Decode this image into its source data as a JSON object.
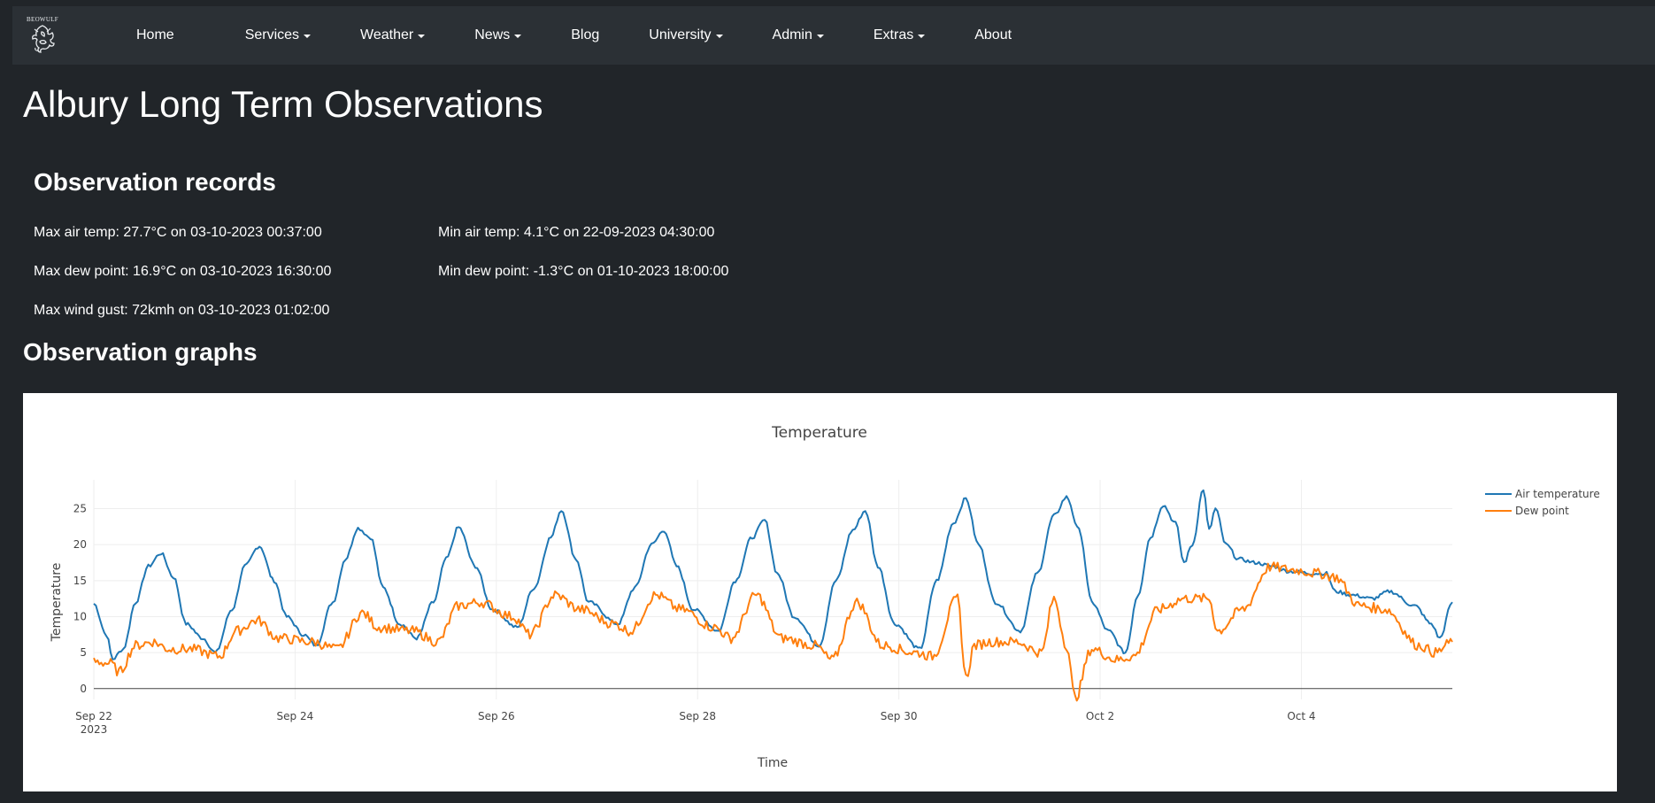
{
  "brand": {
    "name": "BEOWULF",
    "logo_icon": "dragon-icon"
  },
  "nav": {
    "items": [
      {
        "label": "Home",
        "dropdown": false
      },
      {
        "label": "Services",
        "dropdown": true
      },
      {
        "label": "Weather",
        "dropdown": true
      },
      {
        "label": "News",
        "dropdown": true
      },
      {
        "label": "Blog",
        "dropdown": false
      },
      {
        "label": "University",
        "dropdown": true
      },
      {
        "label": "Admin",
        "dropdown": true
      },
      {
        "label": "Extras",
        "dropdown": true
      },
      {
        "label": "About",
        "dropdown": false
      }
    ]
  },
  "page": {
    "title": "Albury Long Term Observations",
    "records_heading": "Observation records",
    "graphs_heading": "Observation graphs"
  },
  "records": {
    "max_air_temp": "Max air temp: 27.7°C on 03-10-2023 00:37:00",
    "min_air_temp": "Min air temp: 4.1°C on 22-09-2023 04:30:00",
    "max_dew_point": "Max dew point: 16.9°C on 03-10-2023 16:30:00",
    "min_dew_point": "Min dew point: -1.3°C on 01-10-2023 18:00:00",
    "max_wind_gust": "Max wind gust: 72kmh on 03-10-2023 01:02:00"
  },
  "chart_data": {
    "type": "line",
    "title": "Temperature",
    "xlabel": "Time",
    "ylabel": "Temperature",
    "x_range": [
      "2023-09-22",
      "2023-10-05 12:00"
    ],
    "ylim": [
      -1.5,
      29
    ],
    "y_ticks": [
      0,
      5,
      10,
      15,
      20,
      25
    ],
    "x_ticks": [
      {
        "date": "2023-09-22",
        "label": "Sep 22",
        "sublabel": "2023"
      },
      {
        "date": "2023-09-24",
        "label": "Sep 24"
      },
      {
        "date": "2023-09-26",
        "label": "Sep 26"
      },
      {
        "date": "2023-09-28",
        "label": "Sep 28"
      },
      {
        "date": "2023-09-30",
        "label": "Sep 30"
      },
      {
        "date": "2023-10-02",
        "label": "Oct 2"
      },
      {
        "date": "2023-10-04",
        "label": "Oct 4"
      }
    ],
    "grid": true,
    "legend_position": "top-right",
    "series": [
      {
        "name": "Air temperature",
        "color": "#1f77b4",
        "points": [
          [
            "2023-09-22 00:00",
            11.8
          ],
          [
            "2023-09-22 03:00",
            7.5
          ],
          [
            "2023-09-22 04:30",
            4.1
          ],
          [
            "2023-09-22 07:00",
            5.5
          ],
          [
            "2023-09-22 10:00",
            12.0
          ],
          [
            "2023-09-22 13:00",
            17.0
          ],
          [
            "2023-09-22 16:00",
            18.8
          ],
          [
            "2023-09-22 19:00",
            15.5
          ],
          [
            "2023-09-22 22:00",
            9.0
          ],
          [
            "2023-09-23 02:00",
            7.0
          ],
          [
            "2023-09-23 05:00",
            5.0
          ],
          [
            "2023-09-23 09:00",
            11.0
          ],
          [
            "2023-09-23 12:00",
            17.0
          ],
          [
            "2023-09-23 15:30",
            19.8
          ],
          [
            "2023-09-23 19:00",
            15.0
          ],
          [
            "2023-09-23 22:00",
            10.0
          ],
          [
            "2023-09-24 02:00",
            7.5
          ],
          [
            "2023-09-24 05:00",
            6.0
          ],
          [
            "2023-09-24 09:00",
            12.0
          ],
          [
            "2023-09-24 12:00",
            18.0
          ],
          [
            "2023-09-24 15:00",
            22.3
          ],
          [
            "2023-09-24 18:00",
            21.0
          ],
          [
            "2023-09-24 21:00",
            14.0
          ],
          [
            "2023-09-25 01:00",
            9.0
          ],
          [
            "2023-09-25 05:00",
            7.0
          ],
          [
            "2023-09-25 09:00",
            12.0
          ],
          [
            "2023-09-25 12:00",
            18.0
          ],
          [
            "2023-09-25 15:00",
            22.4
          ],
          [
            "2023-09-25 19:00",
            17.0
          ],
          [
            "2023-09-25 23:00",
            11.0
          ],
          [
            "2023-09-26 05:00",
            8.5
          ],
          [
            "2023-09-26 09:00",
            14.0
          ],
          [
            "2023-09-26 13:00",
            21.0
          ],
          [
            "2023-09-26 15:30",
            24.8
          ],
          [
            "2023-09-26 19:00",
            18.0
          ],
          [
            "2023-09-26 22:00",
            12.0
          ],
          [
            "2023-09-27 05:00",
            9.0
          ],
          [
            "2023-09-27 09:00",
            14.0
          ],
          [
            "2023-09-27 13:00",
            20.0
          ],
          [
            "2023-09-27 16:00",
            22.0
          ],
          [
            "2023-09-27 19:00",
            17.0
          ],
          [
            "2023-09-27 23:00",
            11.0
          ],
          [
            "2023-09-28 05:00",
            8.0
          ],
          [
            "2023-09-28 09:00",
            15.0
          ],
          [
            "2023-09-28 13:00",
            21.0
          ],
          [
            "2023-09-28 16:00",
            23.4
          ],
          [
            "2023-09-28 19:00",
            16.0
          ],
          [
            "2023-09-28 23:00",
            10.0
          ],
          [
            "2023-09-29 05:00",
            6.0
          ],
          [
            "2023-09-29 09:00",
            15.0
          ],
          [
            "2023-09-29 13:00",
            22.0
          ],
          [
            "2023-09-29 16:00",
            24.7
          ],
          [
            "2023-09-29 19:00",
            17.0
          ],
          [
            "2023-09-29 23:00",
            9.0
          ],
          [
            "2023-09-30 05:00",
            5.5
          ],
          [
            "2023-09-30 09:00",
            15.0
          ],
          [
            "2023-09-30 13:00",
            23.0
          ],
          [
            "2023-09-30 16:00",
            26.4
          ],
          [
            "2023-09-30 19:00",
            20.0
          ],
          [
            "2023-09-30 23:00",
            12.0
          ],
          [
            "2023-10-01 05:00",
            8.0
          ],
          [
            "2023-10-01 09:00",
            16.0
          ],
          [
            "2023-10-01 13:00",
            24.0
          ],
          [
            "2023-10-01 16:00",
            26.6
          ],
          [
            "2023-10-01 19:00",
            22.0
          ],
          [
            "2023-10-01 22:00",
            12.0
          ],
          [
            "2023-10-02 02:00",
            8.0
          ],
          [
            "2023-10-02 06:00",
            5.0
          ],
          [
            "2023-10-02 09:00",
            13.0
          ],
          [
            "2023-10-02 12:00",
            21.0
          ],
          [
            "2023-10-02 15:00",
            25.5
          ],
          [
            "2023-10-02 18:00",
            23.0
          ],
          [
            "2023-10-02 20:00",
            17.5
          ],
          [
            "2023-10-02 22:00",
            20.0
          ],
          [
            "2023-10-03 00:37",
            27.7
          ],
          [
            "2023-10-03 02:00",
            22.0
          ],
          [
            "2023-10-03 03:30",
            25.0
          ],
          [
            "2023-10-03 06:00",
            20.0
          ],
          [
            "2023-10-03 09:00",
            18.0
          ],
          [
            "2023-10-03 13:00",
            17.5
          ],
          [
            "2023-10-03 17:00",
            17.0
          ],
          [
            "2023-10-03 21:00",
            16.3
          ],
          [
            "2023-10-04 03:00",
            16.0
          ],
          [
            "2023-10-04 06:00",
            16.0
          ],
          [
            "2023-10-04 08:00",
            13.5
          ],
          [
            "2023-10-04 12:00",
            13.0
          ],
          [
            "2023-10-04 17:00",
            12.5
          ],
          [
            "2023-10-04 21:00",
            13.5
          ],
          [
            "2023-10-05 03:00",
            11.5
          ],
          [
            "2023-10-05 07:00",
            9.0
          ],
          [
            "2023-10-05 09:00",
            7.0
          ],
          [
            "2023-10-05 12:00",
            12.0
          ]
        ]
      },
      {
        "name": "Dew point",
        "color": "#ff7f0e",
        "points": [
          [
            "2023-09-22 00:00",
            3.8
          ],
          [
            "2023-09-22 04:00",
            3.5
          ],
          [
            "2023-09-22 06:00",
            2.3
          ],
          [
            "2023-09-22 10:00",
            6.0
          ],
          [
            "2023-09-22 14:00",
            6.5
          ],
          [
            "2023-09-22 18:00",
            5.5
          ],
          [
            "2023-09-22 23:00",
            5.5
          ],
          [
            "2023-09-23 06:00",
            4.5
          ],
          [
            "2023-09-23 10:00",
            8.0
          ],
          [
            "2023-09-23 15:00",
            9.5
          ],
          [
            "2023-09-23 20:00",
            7.0
          ],
          [
            "2023-09-24 04:00",
            6.5
          ],
          [
            "2023-09-24 10:00",
            5.5
          ],
          [
            "2023-09-24 16:00",
            10.5
          ],
          [
            "2023-09-24 20:00",
            8.5
          ],
          [
            "2023-09-25 04:00",
            8.0
          ],
          [
            "2023-09-25 10:00",
            6.5
          ],
          [
            "2023-09-25 15:00",
            11.5
          ],
          [
            "2023-09-25 20:00",
            12.0
          ],
          [
            "2023-09-26 04:00",
            10.0
          ],
          [
            "2023-09-26 08:00",
            7.5
          ],
          [
            "2023-09-26 14:00",
            13.0
          ],
          [
            "2023-09-26 20:00",
            11.0
          ],
          [
            "2023-09-27 04:00",
            9.0
          ],
          [
            "2023-09-27 08:00",
            8.0
          ],
          [
            "2023-09-27 14:00",
            13.0
          ],
          [
            "2023-09-27 20:00",
            11.0
          ],
          [
            "2023-09-28 04:00",
            8.5
          ],
          [
            "2023-09-28 08:00",
            7.0
          ],
          [
            "2023-09-28 14:00",
            13.0
          ],
          [
            "2023-09-28 20:00",
            7.0
          ],
          [
            "2023-09-29 04:00",
            6.0
          ],
          [
            "2023-09-29 08:00",
            4.0
          ],
          [
            "2023-09-29 14:00",
            12.0
          ],
          [
            "2023-09-29 20:00",
            6.0
          ],
          [
            "2023-09-30 04:00",
            5.0
          ],
          [
            "2023-09-30 08:00",
            4.5
          ],
          [
            "2023-09-30 14:00",
            12.5
          ],
          [
            "2023-09-30 16:00",
            1.5
          ],
          [
            "2023-09-30 18:00",
            6.0
          ],
          [
            "2023-09-30 22:00",
            6.5
          ],
          [
            "2023-10-01 04:00",
            6.5
          ],
          [
            "2023-10-01 10:00",
            5.0
          ],
          [
            "2023-10-01 13:00",
            12.5
          ],
          [
            "2023-10-01 16:00",
            6.0
          ],
          [
            "2023-10-01 18:00",
            -1.3
          ],
          [
            "2023-10-01 22:00",
            5.5
          ],
          [
            "2023-10-02 04:00",
            4.0
          ],
          [
            "2023-10-02 08:00",
            4.5
          ],
          [
            "2023-10-02 14:00",
            11.0
          ],
          [
            "2023-10-02 20:00",
            12.5
          ],
          [
            "2023-10-03 02:00",
            12.5
          ],
          [
            "2023-10-03 04:00",
            8.0
          ],
          [
            "2023-10-03 10:00",
            11.0
          ],
          [
            "2023-10-03 16:30",
            16.9
          ],
          [
            "2023-10-03 22:00",
            16.5
          ],
          [
            "2023-10-04 04:00",
            16.0
          ],
          [
            "2023-10-04 08:00",
            15.5
          ],
          [
            "2023-10-04 14:00",
            11.5
          ],
          [
            "2023-10-04 20:00",
            11.0
          ],
          [
            "2023-10-05 04:00",
            6.0
          ],
          [
            "2023-10-05 08:00",
            5.0
          ],
          [
            "2023-10-05 12:00",
            6.5
          ]
        ]
      }
    ]
  }
}
